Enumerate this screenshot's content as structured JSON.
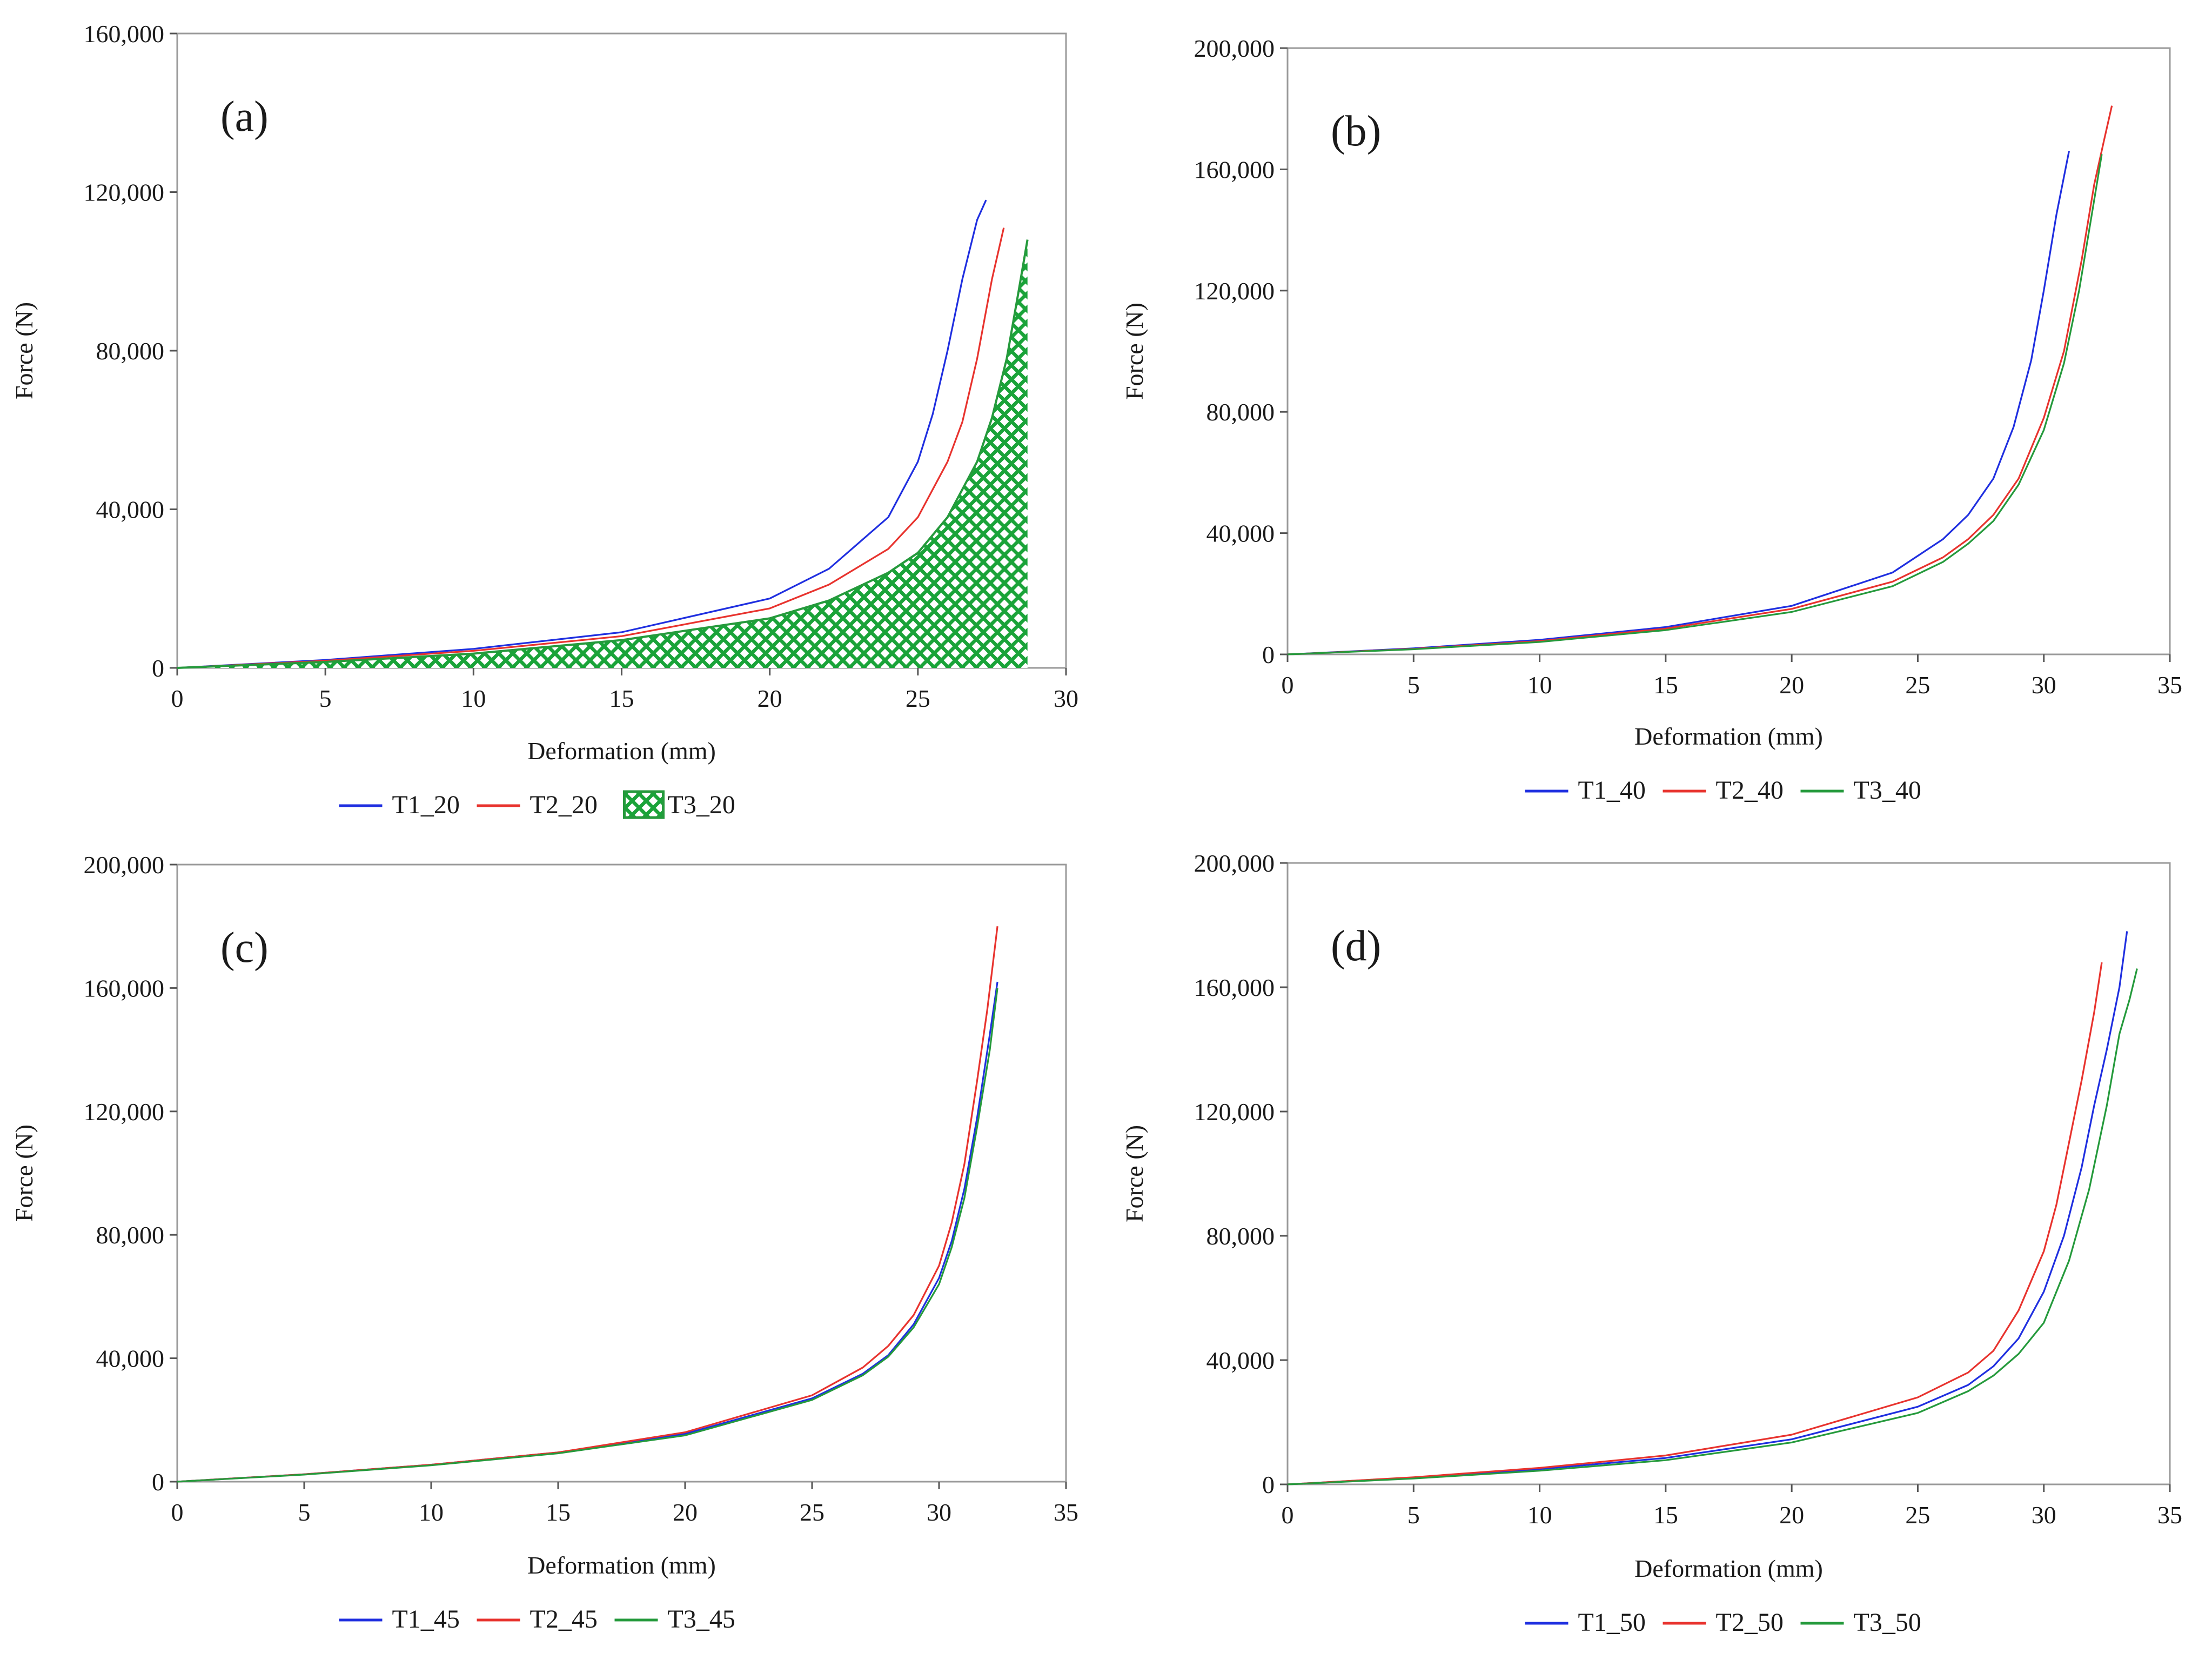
{
  "figure": {
    "colors": {
      "blue": "#1f2fe0",
      "red": "#e8332e",
      "green": "#259a3c",
      "hatch_fill": "#1aa339"
    }
  },
  "chart_data": [
    {
      "type": "line",
      "panel_label": "(a)",
      "xlabel": "Deformation (mm)",
      "ylabel": "Force (N)",
      "xlim": [
        0,
        30
      ],
      "ylim": [
        0,
        160000
      ],
      "xticks": [
        0,
        5,
        10,
        15,
        20,
        25,
        30
      ],
      "yticks": [
        0,
        40000,
        80000,
        120000,
        160000
      ],
      "xtick_labels": [
        "0",
        "5",
        "10",
        "15",
        "20",
        "25",
        "30"
      ],
      "ytick_labels": [
        "0",
        "40,000",
        "80,000",
        "120,000",
        "160,000"
      ],
      "series": [
        {
          "name": "T1_20",
          "color": "#1f2fe0",
          "style": "line",
          "x": [
            0,
            5,
            10,
            15,
            20,
            22,
            24,
            25,
            25.5,
            26,
            26.5,
            27,
            27.3
          ],
          "y": [
            0,
            2000,
            4800,
            9000,
            17500,
            25000,
            38000,
            52000,
            64000,
            80000,
            98000,
            113000,
            118000
          ]
        },
        {
          "name": "T2_20",
          "color": "#e8332e",
          "style": "line",
          "x": [
            0,
            5,
            10,
            15,
            20,
            22,
            24,
            25,
            26,
            26.5,
            27,
            27.5,
            27.9
          ],
          "y": [
            0,
            1800,
            4300,
            8000,
            15000,
            21000,
            30000,
            38000,
            52000,
            62000,
            78000,
            98000,
            111000
          ]
        },
        {
          "name": "T3_20",
          "color": "#259a3c",
          "style": "hatched-area",
          "x": [
            0,
            5,
            10,
            15,
            20,
            22,
            24,
            25,
            26,
            27,
            27.5,
            28,
            28.4,
            28.7
          ],
          "y": [
            0,
            1500,
            3600,
            7000,
            12500,
            17000,
            24000,
            29000,
            38000,
            52000,
            63000,
            78000,
            95000,
            108000
          ]
        }
      ]
    },
    {
      "type": "line",
      "panel_label": "(b)",
      "xlabel": "Deformation (mm)",
      "ylabel": "Force (N)",
      "xlim": [
        0,
        35
      ],
      "ylim": [
        0,
        200000
      ],
      "xticks": [
        0,
        5,
        10,
        15,
        20,
        25,
        30,
        35
      ],
      "yticks": [
        0,
        40000,
        80000,
        120000,
        160000,
        200000
      ],
      "xtick_labels": [
        "0",
        "5",
        "10",
        "15",
        "20",
        "25",
        "30",
        "35"
      ],
      "ytick_labels": [
        "0",
        "40,000",
        "80,000",
        "120,000",
        "160,000",
        "200,000"
      ],
      "series": [
        {
          "name": "T1_40",
          "color": "#1f2fe0",
          "style": "line",
          "x": [
            0,
            5,
            10,
            15,
            20,
            24,
            26,
            27,
            28,
            28.8,
            29.5,
            30,
            30.5,
            31
          ],
          "y": [
            0,
            2000,
            4800,
            9000,
            16000,
            27000,
            38000,
            46000,
            58000,
            75000,
            97000,
            120000,
            145000,
            166000
          ]
        },
        {
          "name": "T2_40",
          "color": "#e8332e",
          "style": "line",
          "x": [
            0,
            5,
            10,
            15,
            20,
            24,
            26,
            27,
            28,
            29,
            30,
            30.8,
            31.5,
            32,
            32.4,
            32.7
          ],
          "y": [
            0,
            1800,
            4400,
            8500,
            15000,
            24000,
            32000,
            38000,
            46000,
            58000,
            78000,
            100000,
            130000,
            155000,
            170000,
            181000
          ]
        },
        {
          "name": "T3_40",
          "color": "#259a3c",
          "style": "line",
          "x": [
            0,
            5,
            10,
            15,
            20,
            24,
            26,
            27,
            28,
            29,
            30,
            30.8,
            31.4,
            31.9,
            32.3
          ],
          "y": [
            0,
            1700,
            4100,
            8000,
            14000,
            22500,
            30500,
            36500,
            44000,
            56000,
            74000,
            96000,
            120000,
            145000,
            165000
          ]
        }
      ]
    },
    {
      "type": "line",
      "panel_label": "(c)",
      "xlabel": "Deformation (mm)",
      "ylabel": "Force (N)",
      "xlim": [
        0,
        35
      ],
      "ylim": [
        0,
        200000
      ],
      "xticks": [
        0,
        5,
        10,
        15,
        20,
        25,
        30,
        35
      ],
      "yticks": [
        0,
        40000,
        80000,
        120000,
        160000,
        200000
      ],
      "xtick_labels": [
        "0",
        "5",
        "10",
        "15",
        "20",
        "25",
        "30",
        "35"
      ],
      "ytick_labels": [
        "0",
        "40,000",
        "80,000",
        "120,000",
        "160,000",
        "200,000"
      ],
      "series": [
        {
          "name": "T1_45",
          "color": "#1f2fe0",
          "style": "line",
          "x": [
            0,
            5,
            10,
            15,
            20,
            25,
            27,
            28,
            29,
            30,
            30.5,
            31,
            31.5,
            32,
            32.3
          ],
          "y": [
            0,
            2400,
            5500,
            9500,
            15500,
            27000,
            35000,
            41000,
            51000,
            66000,
            78000,
            95000,
            118000,
            145000,
            162000
          ]
        },
        {
          "name": "T2_45",
          "color": "#e8332e",
          "style": "line",
          "x": [
            0,
            5,
            10,
            15,
            20,
            25,
            27,
            28,
            29,
            30,
            30.5,
            31,
            31.5,
            31.9,
            32.3
          ],
          "y": [
            0,
            2400,
            5500,
            9500,
            16000,
            28000,
            37000,
            44000,
            54000,
            70000,
            84000,
            103000,
            130000,
            153000,
            180000
          ]
        },
        {
          "name": "T3_45",
          "color": "#259a3c",
          "style": "line",
          "x": [
            0,
            5,
            10,
            15,
            20,
            25,
            27,
            28,
            29,
            30,
            30.5,
            31,
            31.5,
            32,
            32.3
          ],
          "y": [
            0,
            2300,
            5300,
            9200,
            15000,
            26500,
            34500,
            40500,
            50000,
            64000,
            76000,
            92000,
            115000,
            140000,
            160000
          ]
        }
      ]
    },
    {
      "type": "line",
      "panel_label": "(d)",
      "xlabel": "Deformation (mm)",
      "ylabel": "Force (N)",
      "xlim": [
        0,
        35
      ],
      "ylim": [
        0,
        200000
      ],
      "xticks": [
        0,
        5,
        10,
        15,
        20,
        25,
        30,
        35
      ],
      "yticks": [
        0,
        40000,
        80000,
        120000,
        160000,
        200000
      ],
      "xtick_labels": [
        "0",
        "5",
        "10",
        "15",
        "20",
        "25",
        "30",
        "35"
      ],
      "ytick_labels": [
        "0",
        "40,000",
        "80,000",
        "120,000",
        "160,000",
        "200,000"
      ],
      "series": [
        {
          "name": "T1_50",
          "color": "#1f2fe0",
          "style": "line",
          "x": [
            0,
            5,
            10,
            15,
            20,
            25,
            27,
            28,
            29,
            30,
            30.8,
            31.5,
            32,
            32.5,
            33,
            33.3
          ],
          "y": [
            0,
            2200,
            4900,
            8500,
            14500,
            25000,
            32000,
            38000,
            47000,
            62000,
            80000,
            102000,
            122000,
            140000,
            160000,
            178000
          ]
        },
        {
          "name": "T2_50",
          "color": "#e8332e",
          "style": "line",
          "x": [
            0,
            5,
            10,
            15,
            20,
            25,
            27,
            28,
            29,
            30,
            30.5,
            31,
            31.5,
            32,
            32.3
          ],
          "y": [
            0,
            2300,
            5300,
            9300,
            16000,
            28000,
            36000,
            43000,
            56000,
            75000,
            90000,
            110000,
            130000,
            152000,
            168000
          ]
        },
        {
          "name": "T3_50",
          "color": "#259a3c",
          "style": "line",
          "x": [
            0,
            5,
            10,
            15,
            20,
            25,
            27,
            28,
            29,
            30,
            31,
            31.8,
            32.5,
            33,
            33.4,
            33.7
          ],
          "y": [
            0,
            1900,
            4400,
            7800,
            13500,
            23000,
            30000,
            35000,
            42000,
            52000,
            72000,
            95000,
            122000,
            145000,
            156000,
            166000
          ]
        }
      ]
    }
  ]
}
